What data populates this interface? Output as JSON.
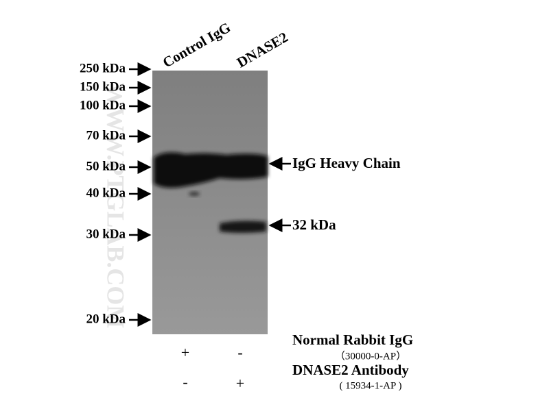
{
  "lanes": [
    "Control IgG",
    "DNASE2"
  ],
  "markers": [
    "250 kDa",
    "150 kDa",
    "100 kDa",
    "70 kDa",
    "50 kDa",
    "40 kDa",
    "30 kDa",
    "20 kDa"
  ],
  "bands": [
    "IgG Heavy Chain",
    "32 kDa"
  ],
  "watermark": "WWW.PTGLAB.COM",
  "conditions": [
    {
      "name": "Normal Rabbit IgG",
      "catalog": "（30000-0-AP）",
      "signs": [
        "+",
        "-"
      ]
    },
    {
      "name": "DNASE2 Antibody",
      "catalog": "( 15934-1-AP )",
      "signs": [
        "-",
        "+"
      ]
    }
  ]
}
